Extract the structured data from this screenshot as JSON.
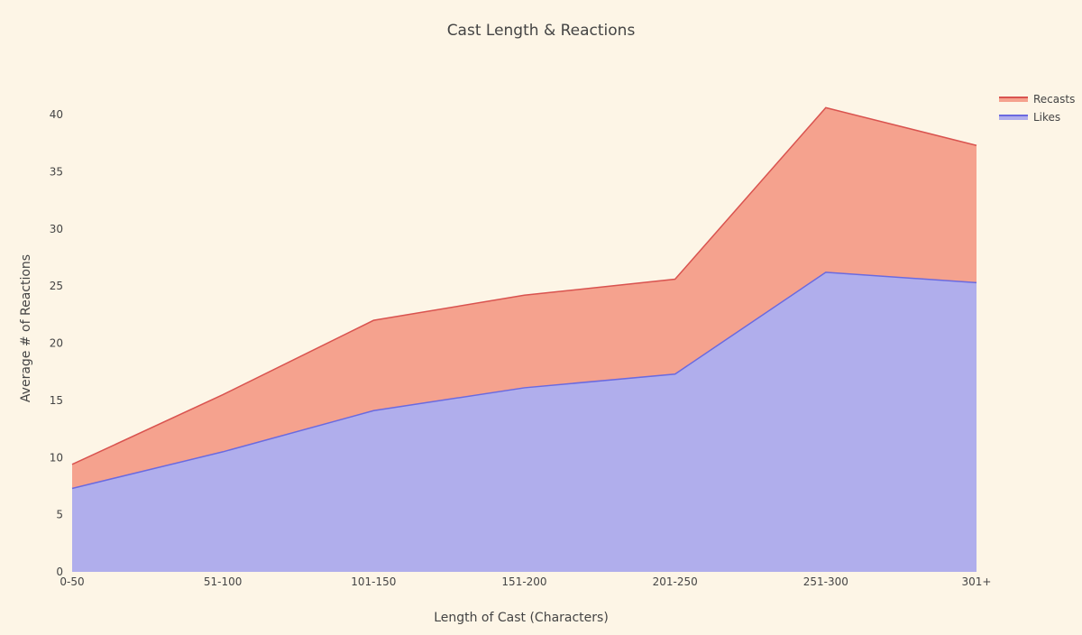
{
  "title": "Cast Length & Reactions",
  "xaxis": {
    "title": "Length of Cast (Characters)",
    "categories": [
      "0-50",
      "51-100",
      "101-150",
      "151-200",
      "201-250",
      "251-300",
      "301+"
    ]
  },
  "yaxis": {
    "title": "Average # of Reactions",
    "ticks": [
      "0",
      "5",
      "10",
      "15",
      "20",
      "25",
      "30",
      "35",
      "40"
    ]
  },
  "legend": {
    "items": [
      {
        "label": "Recasts",
        "line_color": "#d9534f",
        "fill_color": "#f5a28e"
      },
      {
        "label": "Likes",
        "line_color": "#6a6ae0",
        "fill_color": "#b0aeec"
      }
    ]
  },
  "colors": {
    "background": "#fdf5e6",
    "recasts_line": "#d9534f",
    "recasts_fill": "#f5a28e",
    "likes_line": "#6a6ae0",
    "likes_fill": "#b0aeec"
  },
  "chart_data": {
    "type": "area",
    "stacked": true,
    "title": "Cast Length & Reactions",
    "xlabel": "Length of Cast (Characters)",
    "ylabel": "Average # of Reactions",
    "categories": [
      "0-50",
      "51-100",
      "101-150",
      "151-200",
      "201-250",
      "251-300",
      "301+"
    ],
    "series": [
      {
        "name": "Likes",
        "values": [
          7.3,
          10.5,
          14.1,
          16.1,
          17.3,
          26.2,
          25.3
        ]
      },
      {
        "name": "Recasts",
        "values": [
          2.1,
          5.0,
          7.9,
          8.1,
          8.3,
          14.4,
          12.0
        ]
      }
    ],
    "stacked_totals": [
      9.4,
      15.5,
      22.0,
      24.2,
      25.6,
      40.6,
      37.3
    ],
    "ylim": [
      0,
      42
    ],
    "yticks": [
      0,
      5,
      10,
      15,
      20,
      25,
      30,
      35,
      40
    ],
    "grid": false,
    "legend_position": "top-right"
  }
}
